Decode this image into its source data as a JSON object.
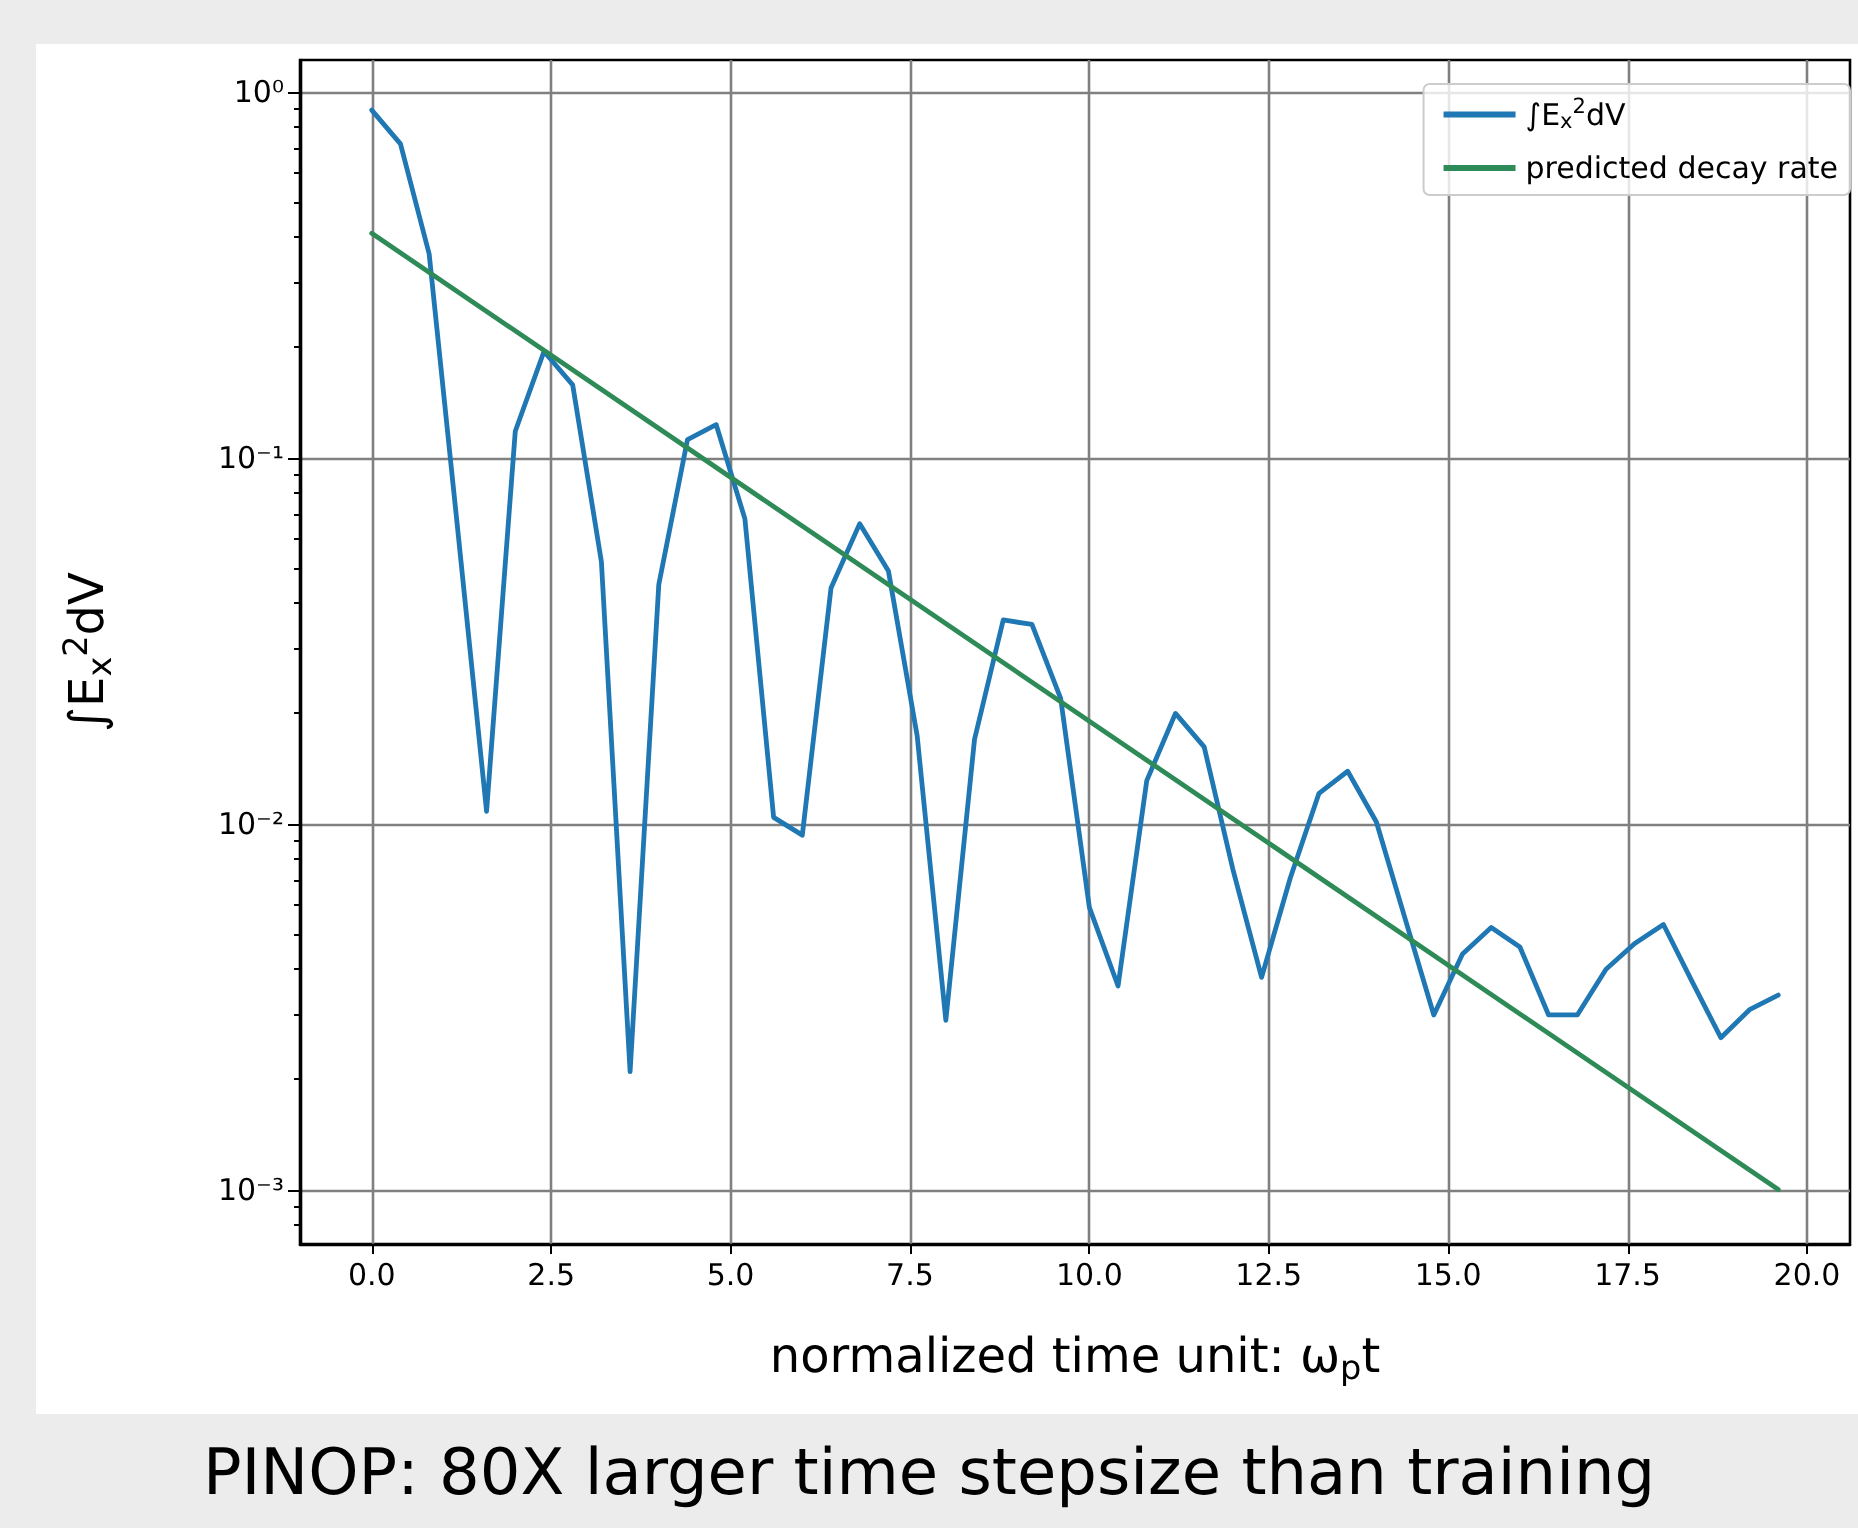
{
  "chart_data": {
    "type": "line",
    "xlabel": "normalized time unit: ω$_{p}$t",
    "ylabel": "∫E$_{x}$$^{2}$dV",
    "annotations": [
      "PINOP: 80X larger time stepsize than training"
    ],
    "x": [
      0,
      0.4,
      0.8,
      1.2,
      1.6,
      2.0,
      2.4,
      2.8,
      3.2,
      3.6,
      4.0,
      4.4,
      4.8,
      5.2,
      5.6,
      6.0,
      6.4,
      6.8,
      7.2,
      7.6,
      8.0,
      8.4,
      8.8,
      9.2,
      9.6,
      10.0,
      10.4,
      10.8,
      11.2,
      11.6,
      12.0,
      12.4,
      12.8,
      13.2,
      13.6,
      14.0,
      14.4,
      14.8,
      15.2,
      15.6,
      16.0,
      16.4,
      16.8,
      17.2,
      17.6,
      18.0,
      18.4,
      18.8,
      19.2,
      19.6
    ],
    "series": [
      {
        "name": "∫E$_{x}$$^{2}$dV",
        "color": "#1f77b4",
        "values": [
          0.89,
          0.72,
          0.36,
          0.063,
          0.0108,
          0.118,
          0.195,
          0.158,
          0.052,
          0.0021,
          0.045,
          0.112,
          0.123,
          0.068,
          0.0104,
          0.0093,
          0.044,
          0.066,
          0.049,
          0.0174,
          0.0029,
          0.017,
          0.036,
          0.035,
          0.022,
          0.0059,
          0.0036,
          0.0131,
          0.02,
          0.0162,
          0.0075,
          0.0038,
          0.0071,
          0.0121,
          0.0139,
          0.0101,
          0.0055,
          0.003,
          0.0044,
          0.0052,
          0.0046,
          0.003,
          0.003,
          0.004,
          0.0047,
          0.0053,
          0.0037,
          0.0026,
          0.0031,
          0.0034
        ]
      },
      {
        "name": "predicted decay rate",
        "color": "#2e8b57",
        "x": [
          0,
          19.6
        ],
        "values": [
          0.41,
          0.001
        ]
      }
    ],
    "xlim": [
      -1,
      20.6
    ],
    "xticks": [
      {
        "value": 0,
        "label": "0.0"
      },
      {
        "value": 2.5,
        "label": "2.5"
      },
      {
        "value": 5,
        "label": "5.0"
      },
      {
        "value": 7.5,
        "label": "7.5"
      },
      {
        "value": 10,
        "label": "10.0"
      },
      {
        "value": 12.5,
        "label": "12.5"
      },
      {
        "value": 15,
        "label": "15.0"
      },
      {
        "value": 17.5,
        "label": "17.5"
      },
      {
        "value": 20,
        "label": "20.0"
      }
    ],
    "ylim": [
      0.00071,
      1.22
    ],
    "yticks": [
      {
        "value": 0.001,
        "label": "10⁻³"
      },
      {
        "value": 0.01,
        "label": "10⁻²"
      },
      {
        "value": 0.1,
        "label": "10⁻¹"
      },
      {
        "value": 1,
        "label": "10⁰"
      }
    ],
    "log": "y",
    "grid": true,
    "legend": "top right",
    "marker": "none",
    "line_style": "solid"
  }
}
